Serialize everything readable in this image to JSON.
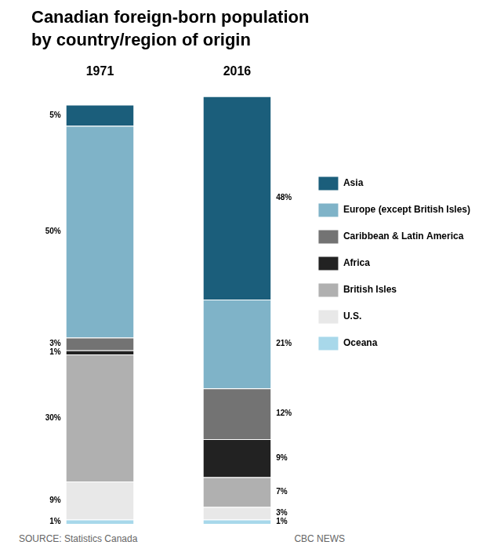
{
  "chart_data": {
    "type": "bar",
    "title": "Canadian foreign-born population",
    "subtitle": "by country/region of origin",
    "categories": [
      "1971",
      "2016"
    ],
    "stacked": true,
    "series": [
      {
        "name": "Oceana",
        "color": "#a8d8ea",
        "values": [
          1,
          1
        ],
        "value_labels": [
          "1%",
          "1%"
        ]
      },
      {
        "name": "U.S.",
        "color": "#e8e8e8",
        "values": [
          9,
          3
        ],
        "value_labels": [
          "9%",
          "3%"
        ]
      },
      {
        "name": "British Isles",
        "color": "#b0b0b0",
        "values": [
          30,
          7
        ],
        "value_labels": [
          "30%",
          "7%"
        ]
      },
      {
        "name": "Africa",
        "color": "#222222",
        "values": [
          1,
          9
        ],
        "value_labels": [
          "1%",
          "9%"
        ]
      },
      {
        "name": "Caribbean & Latin America",
        "color": "#737373",
        "values": [
          3,
          12
        ],
        "value_labels": [
          "3%",
          "12%"
        ]
      },
      {
        "name": "Europe (except British Isles)",
        "color": "#7fb3c8",
        "values": [
          50,
          21
        ],
        "value_labels": [
          "50%",
          "21%"
        ]
      },
      {
        "name": "Asia",
        "color": "#1b5e7b",
        "values": [
          5,
          48
        ],
        "value_labels": [
          "5%",
          "48%"
        ]
      }
    ],
    "ylim": [
      0,
      103
    ],
    "data_labels": true,
    "tick_labels": "x",
    "grid": false,
    "legend": "right",
    "annotations": [
      "SOURCE: Statistics Canada",
      "CBC NEWS"
    ]
  }
}
